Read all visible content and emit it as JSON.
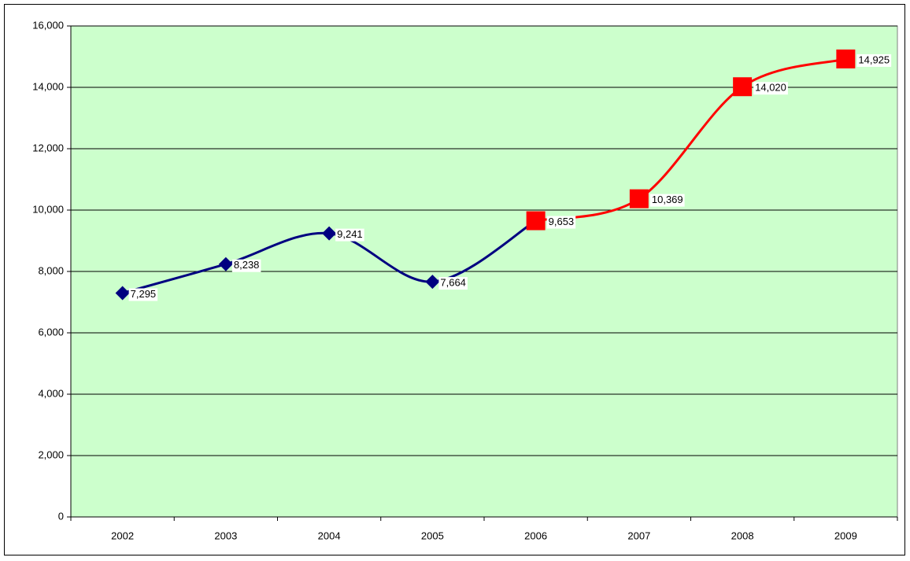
{
  "chart_data": {
    "type": "line",
    "categories": [
      "2002",
      "2003",
      "2004",
      "2005",
      "2006",
      "2007",
      "2008",
      "2009"
    ],
    "series": [
      {
        "color": "#000080",
        "marker": "diamond",
        "values": [
          7295,
          8238,
          9241,
          7664,
          9653,
          null,
          null,
          null
        ],
        "value_labels": [
          "7,295",
          "8,238",
          "9,241",
          "7,664",
          null,
          null,
          null,
          null
        ]
      },
      {
        "color": "#ff0000",
        "marker": "square",
        "values": [
          null,
          null,
          null,
          null,
          9653,
          10369,
          14020,
          14925
        ],
        "value_labels": [
          null,
          null,
          null,
          null,
          "9,653",
          "10,369",
          "14,020",
          "14,925"
        ]
      }
    ],
    "ylim": [
      0,
      16000
    ],
    "yticks": [
      0,
      {
        "value": 2000,
        "label": "2,000"
      },
      {
        "value": 4000,
        "label": "4,000"
      },
      {
        "value": 6000,
        "label": "6,000"
      },
      {
        "value": 8000,
        "label": "8,000"
      },
      {
        "value": 10000,
        "label": "10,000"
      },
      {
        "value": 12000,
        "label": "12,000"
      },
      {
        "value": 14000,
        "label": "14,000"
      },
      {
        "value": 16000,
        "label": "16,000"
      }
    ],
    "grid": true,
    "smooth": true,
    "plot_background": "#ccffcc"
  }
}
